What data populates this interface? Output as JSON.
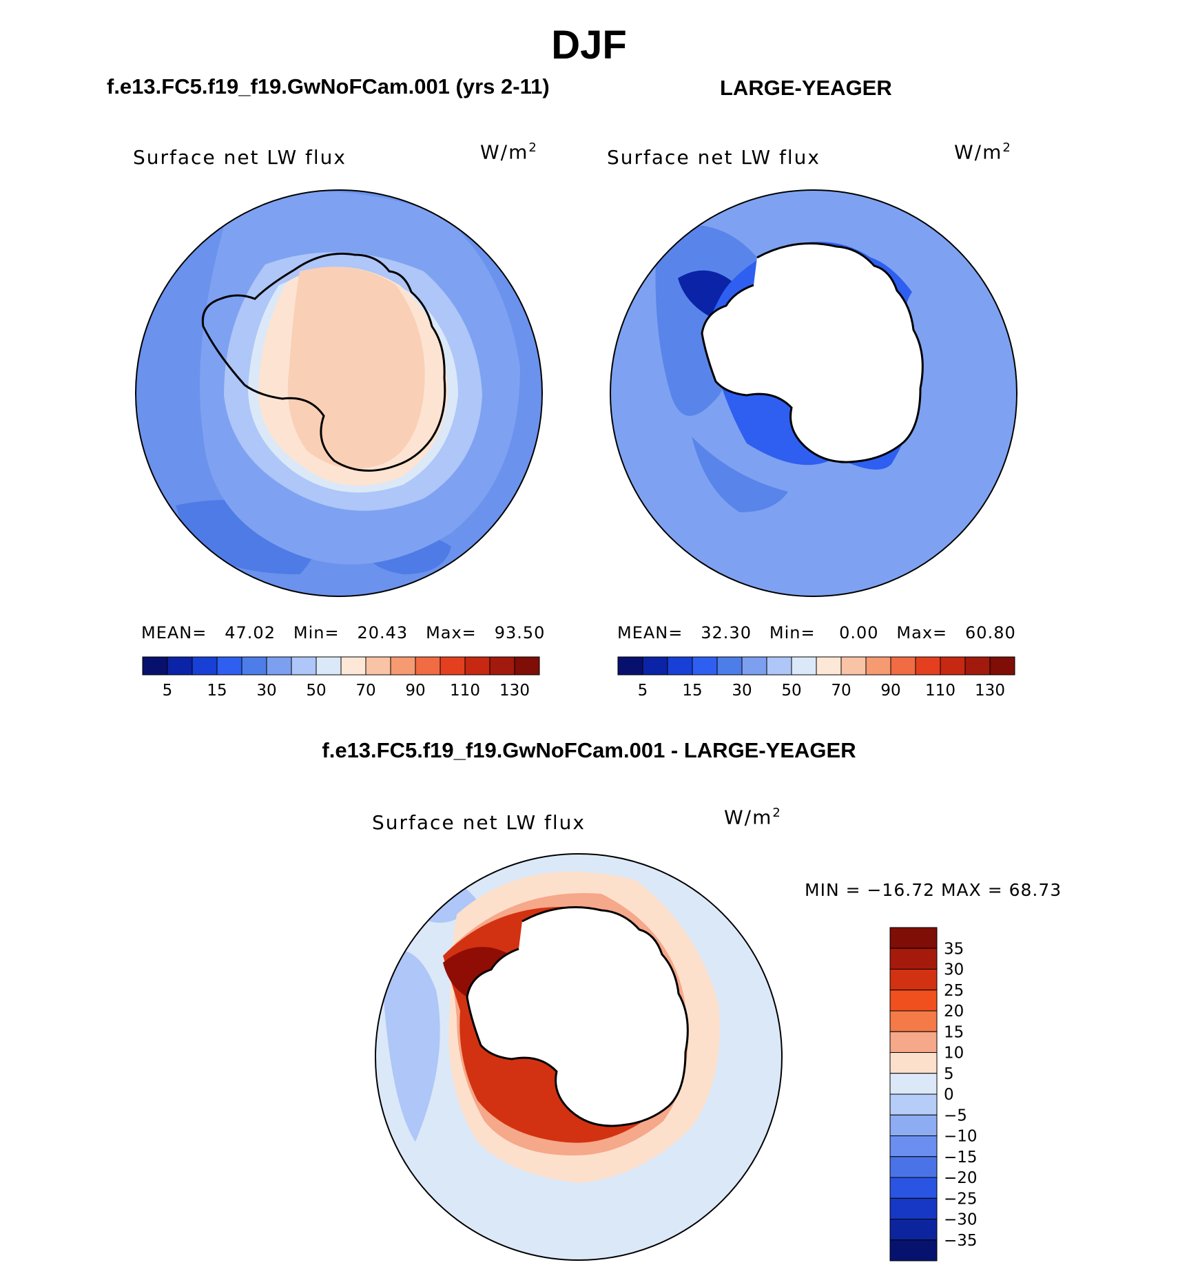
{
  "season": "DJF",
  "panels": [
    {
      "id": "model",
      "case_title": "f.e13.FC5.f19_f19.GwNoFCam.001 (yrs 2-11)",
      "variable": "Surface net LW flux",
      "units": "W/m",
      "units_exp": "2",
      "stats": {
        "mean_label": "MEAN=",
        "mean": "47.02",
        "min_label": "Min=",
        "min": "20.43",
        "max_label": "Max=",
        "max": "93.50"
      }
    },
    {
      "id": "obs",
      "case_title": "LARGE-YEAGER",
      "variable": "Surface net LW flux",
      "units": "W/m",
      "units_exp": "2",
      "stats": {
        "mean_label": "MEAN=",
        "mean": "32.30",
        "min_label": "Min=",
        "min": "0.00",
        "max_label": "Max=",
        "max": "60.80"
      }
    }
  ],
  "difference": {
    "case_title": "f.e13.FC5.f19_f19.GwNoFCam.001 - LARGE-YEAGER",
    "variable": "Surface net LW flux",
    "units": "W/m",
    "units_exp": "2",
    "minmax": "MIN = −16.72 MAX =   68.73"
  },
  "colorbar_top": {
    "colors": [
      "#08106e",
      "#0b23a6",
      "#1840d6",
      "#2e5ff0",
      "#4d7de8",
      "#7c9ff0",
      "#aec6f8",
      "#dbe8f8",
      "#fde7d6",
      "#f9c3a6",
      "#f69a72",
      "#f16b43",
      "#e4401f",
      "#c62811",
      "#a11a0d",
      "#7e0e06"
    ],
    "tick_labels": [
      "5",
      "15",
      "30",
      "50",
      "70",
      "90",
      "110",
      "130"
    ]
  },
  "colorbar_diff": {
    "colors": [
      "#7e0e06",
      "#a61a0b",
      "#d23211",
      "#f0501e",
      "#f47a48",
      "#f6a88a",
      "#fde0cc",
      "#dbe8f8",
      "#b5cdf7",
      "#8eacf2",
      "#6a8ff0",
      "#4a73e8",
      "#2a55e2",
      "#1638c4",
      "#0c259e",
      "#06136e"
    ],
    "tick_labels": [
      "35",
      "30",
      "25",
      "20",
      "15",
      "10",
      "5",
      "0",
      "−5",
      "−10",
      "−15",
      "−20",
      "−25",
      "−30",
      "−35"
    ]
  },
  "colors": {
    "ocean_light_blue": "#7a9ff0",
    "ice_peach": "#fde3d2",
    "deep_blue": "#0c2aa8",
    "diff_red": "#9a1005",
    "coastline": "#000000"
  }
}
